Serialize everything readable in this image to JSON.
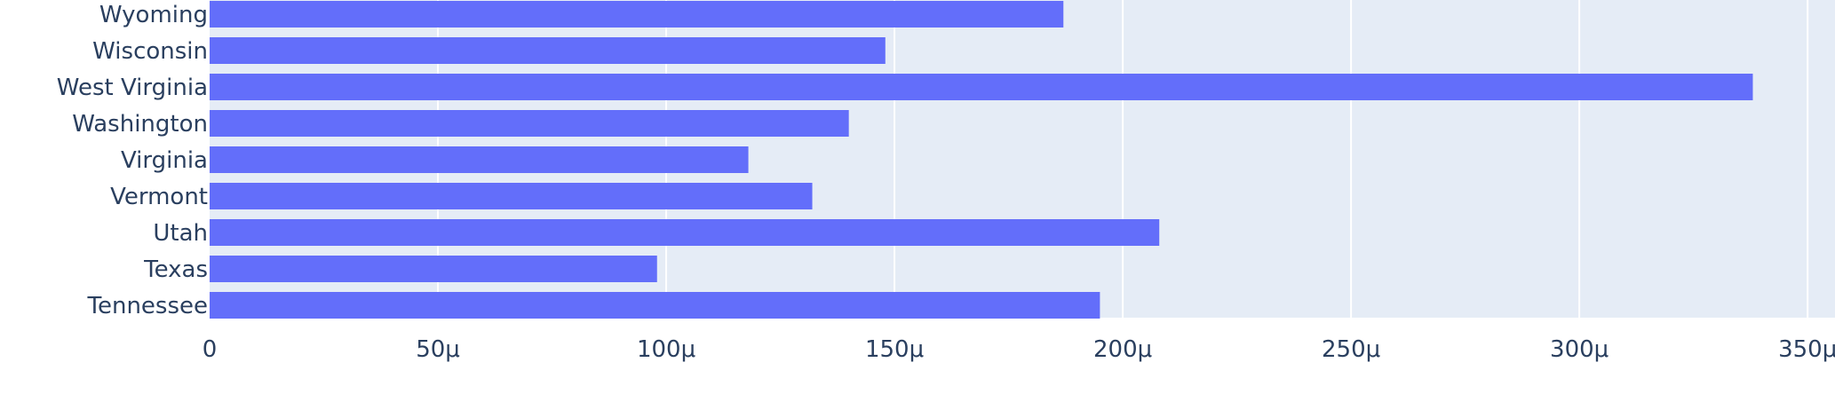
{
  "chart_data": {
    "type": "bar",
    "orientation": "horizontal",
    "categories": [
      "Wyoming",
      "Wisconsin",
      "West Virginia",
      "Washington",
      "Virginia",
      "Vermont",
      "Utah",
      "Texas",
      "Tennessee"
    ],
    "values": [
      0.000187,
      0.000148,
      0.000338,
      0.00014,
      0.000118,
      0.000132,
      0.000208,
      9.8e-05,
      0.000195
    ],
    "xticks": [
      0,
      5e-05,
      0.0001,
      0.00015,
      0.0002,
      0.00025,
      0.0003,
      0.00035
    ],
    "xtick_labels": [
      "0",
      "50μ",
      "100μ",
      "150μ",
      "200μ",
      "250μ",
      "300μ",
      "350μ"
    ],
    "xlim": [
      0,
      0.000356
    ],
    "grid": true,
    "colors": {
      "bar": "#636efa",
      "plot_bg": "#e5ecf6",
      "grid": "#ffffff",
      "text": "#2a3f5f"
    }
  }
}
